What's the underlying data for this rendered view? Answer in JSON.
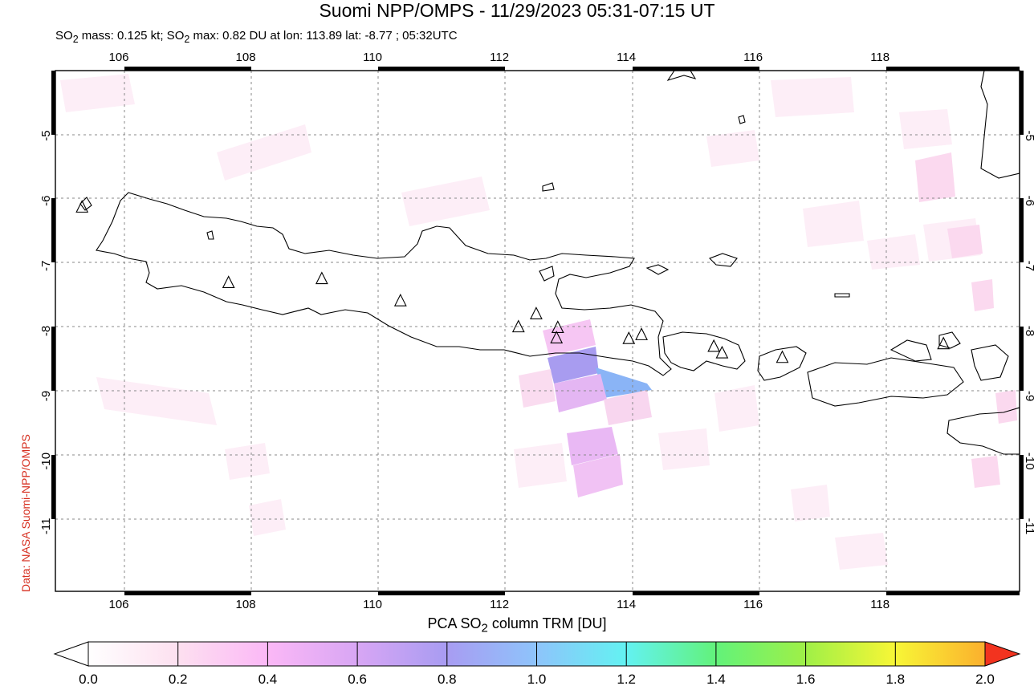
{
  "title": "Suomi NPP/OMPS - 11/29/2023 05:31-07:15 UT",
  "subtitle": {
    "prefix": "SO",
    "sub1": "2",
    "middle": " mass: 0.125 kt; SO",
    "sub2": "2",
    "suffix": " max: 0.82 DU at lon: 113.89 lat: -8.77 ; 05:32UTC"
  },
  "credit": "Data: NASA Suomi-NPP/OMPS",
  "map": {
    "lon_ticks": [
      "106",
      "108",
      "110",
      "112",
      "114",
      "116",
      "118"
    ],
    "lat_ticks": [
      "-5",
      "-6",
      "-7",
      "-8",
      "-9",
      "-10",
      "-11"
    ],
    "lon_range": [
      105.0,
      120.2
    ],
    "lat_range": [
      -12.0,
      -4.0
    ],
    "volcano_markers": [
      {
        "lon": 105.42,
        "lat": -6.1
      },
      {
        "lon": 107.73,
        "lat": -7.26
      },
      {
        "lon": 109.2,
        "lat": -7.2
      },
      {
        "lon": 110.44,
        "lat": -7.54
      },
      {
        "lon": 112.3,
        "lat": -7.94
      },
      {
        "lon": 112.58,
        "lat": -7.74
      },
      {
        "lon": 112.92,
        "lat": -7.95
      },
      {
        "lon": 112.9,
        "lat": -8.11
      },
      {
        "lon": 114.04,
        "lat": -8.12
      },
      {
        "lon": 114.24,
        "lat": -8.06
      },
      {
        "lon": 115.38,
        "lat": -8.24
      },
      {
        "lon": 115.51,
        "lat": -8.34
      },
      {
        "lon": 116.46,
        "lat": -8.41
      },
      {
        "lon": 119.0,
        "lat": -8.2
      }
    ]
  },
  "colorbar": {
    "title_prefix": "PCA SO",
    "title_sub": "2",
    "title_suffix": " column TRM [DU]",
    "labels": [
      "0.0",
      "0.2",
      "0.4",
      "0.6",
      "0.8",
      "1.0",
      "1.2",
      "1.4",
      "1.6",
      "1.8",
      "2.0"
    ],
    "range": [
      0.0,
      2.0
    ],
    "colors": [
      "#ffffff",
      "#fde0f0",
      "#fbb8f6",
      "#d8a6f4",
      "#a89cf2",
      "#8ec4fb",
      "#63f2f2",
      "#62f27a",
      "#9ff047",
      "#f8f636",
      "#fbb02d",
      "#f2331f"
    ]
  }
}
